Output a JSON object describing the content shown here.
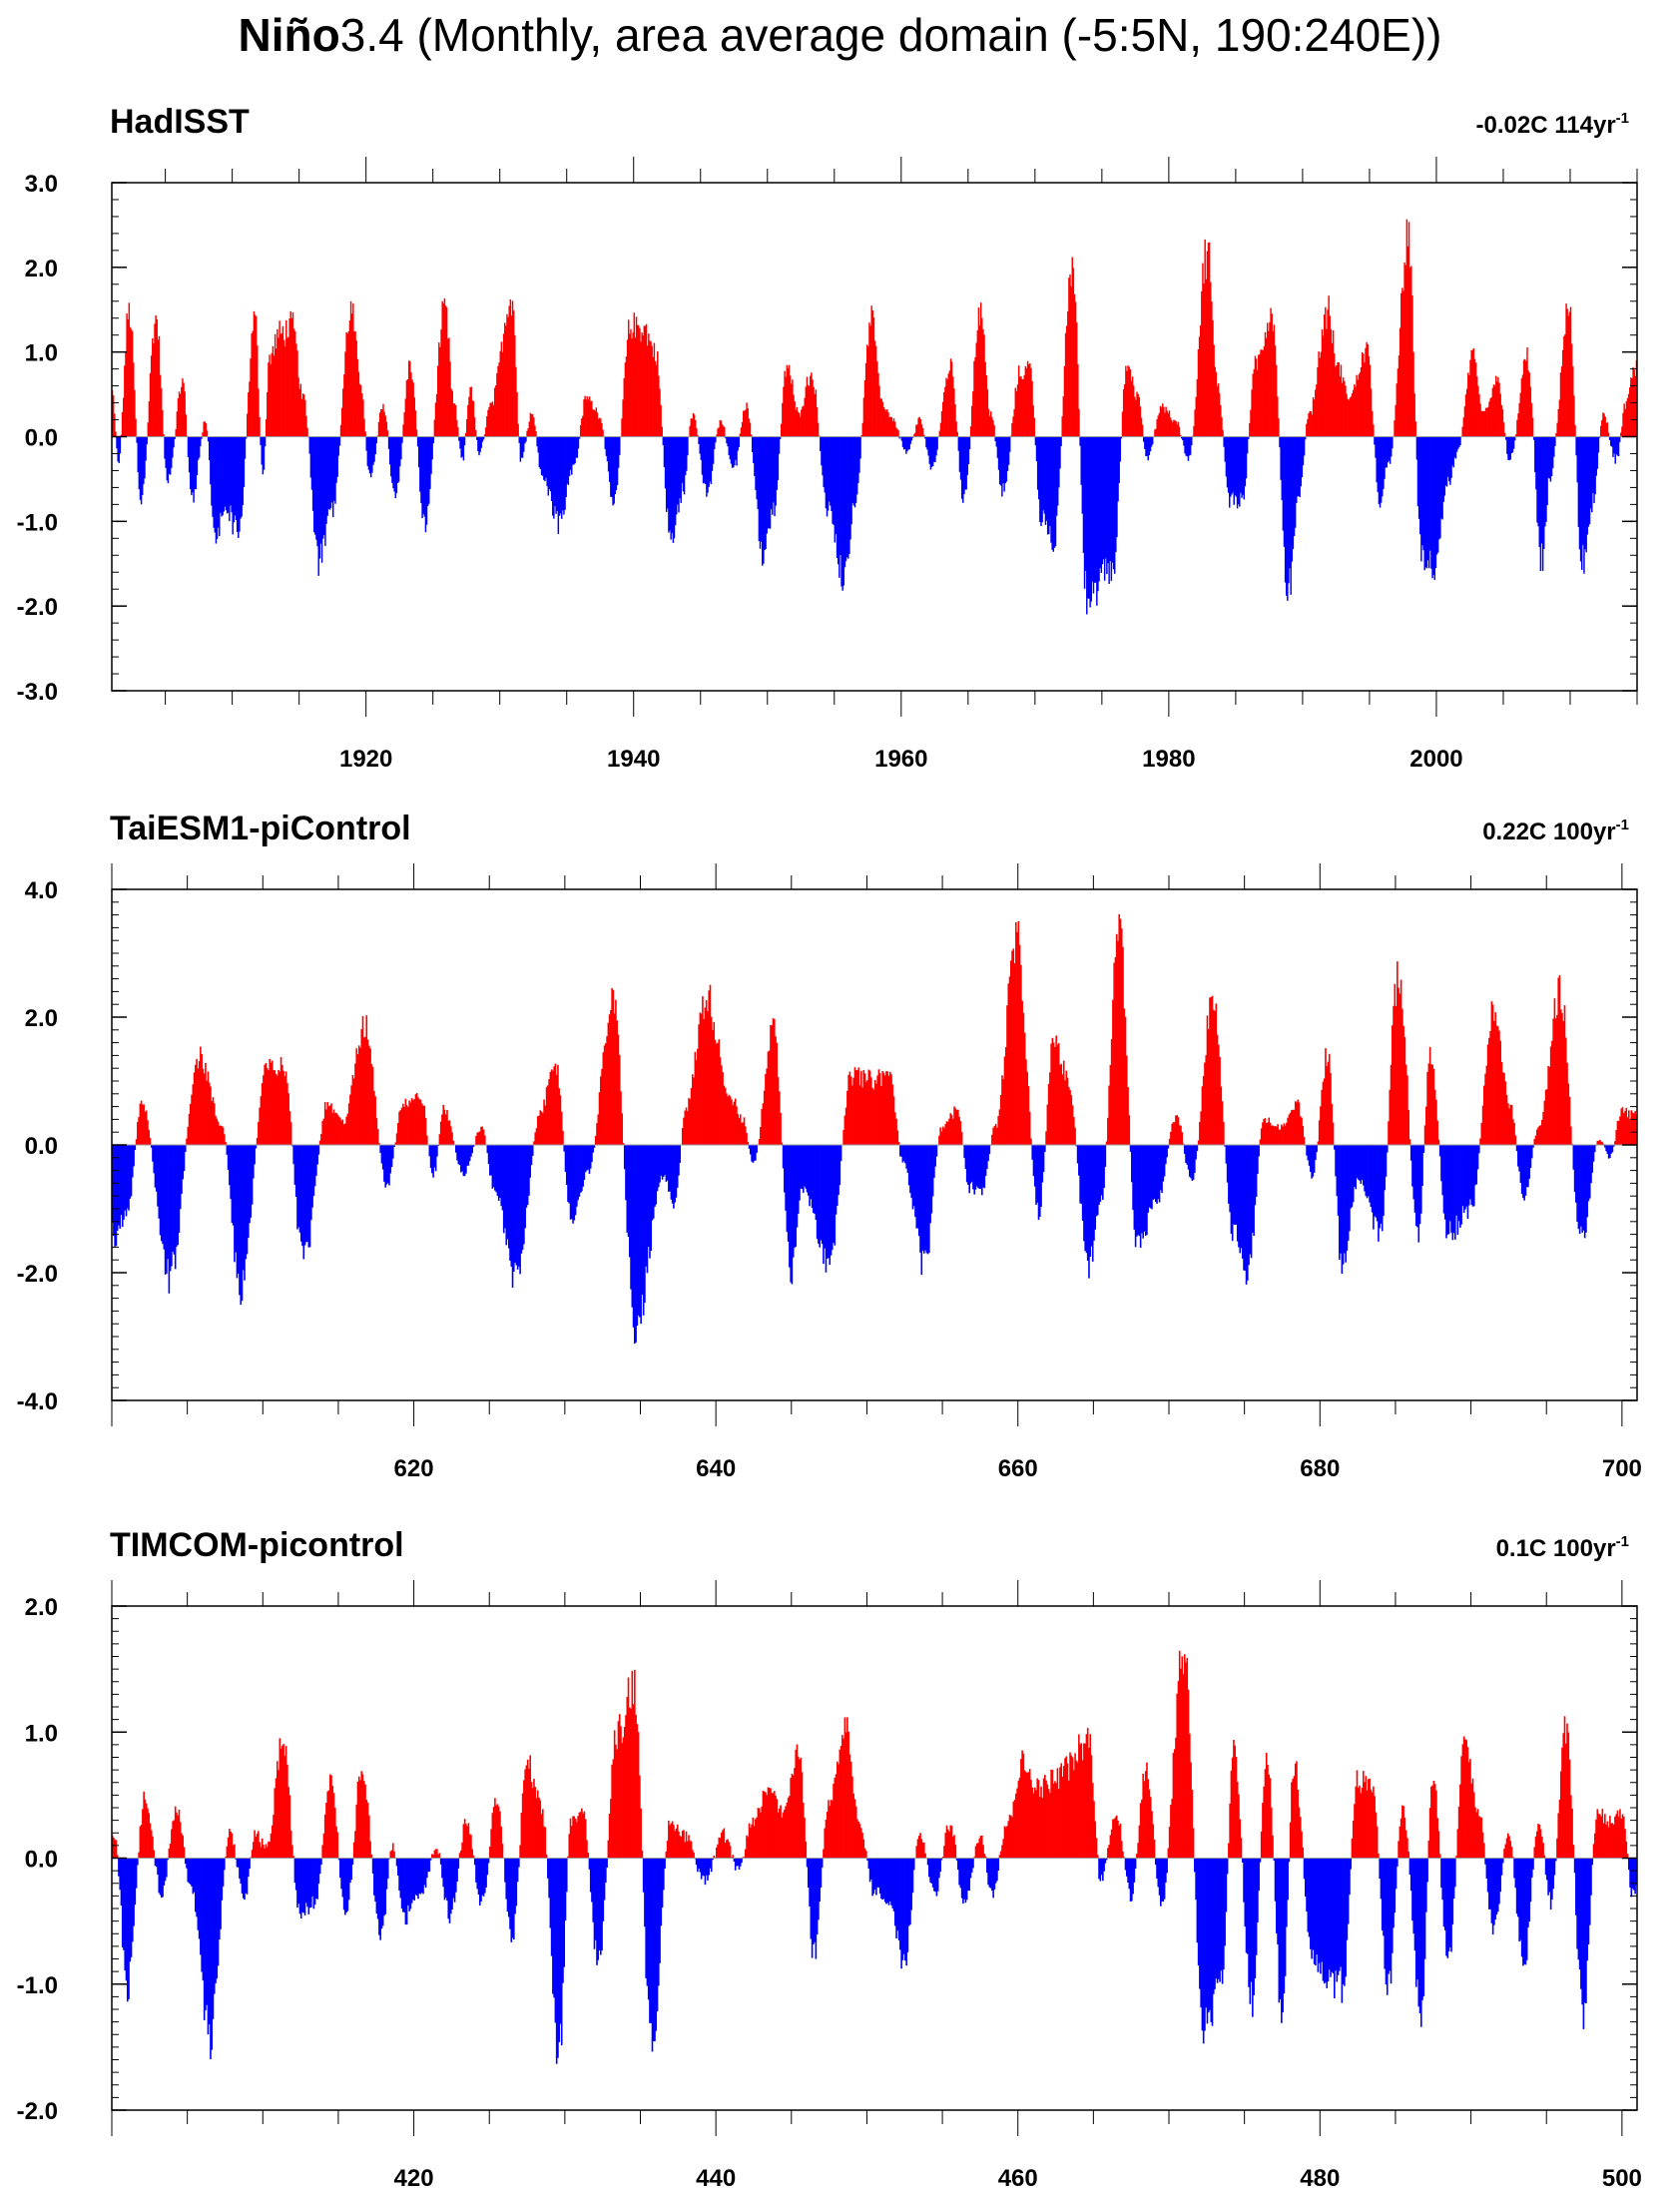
{
  "title": {
    "bold_part": "Niño",
    "rest": "3.4 (Monthly, area average domain (-5:5N, 190:240E))"
  },
  "colors": {
    "positive": "#ff0000",
    "negative": "#0000ff",
    "axis": "#000000"
  },
  "chart_data": [
    {
      "type": "area",
      "title": "HadISST",
      "trend_label": "-0.02C 114yr",
      "trend_superscript": "-1",
      "xlim": [
        1901,
        2015
      ],
      "ylim": [
        -3.0,
        3.0
      ],
      "yticks": [
        "-3.0",
        "-2.0",
        "-1.0",
        "0.0",
        "1.0",
        "2.0",
        "3.0"
      ],
      "xticks": [
        "1920",
        "1940",
        "1960",
        "1980",
        "2000"
      ],
      "xtick_values": [
        1920,
        1940,
        1960,
        1980,
        2000
      ],
      "keypoints": [
        [
          1901,
          0.6
        ],
        [
          1901.5,
          -0.3
        ],
        [
          1902.3,
          1.6
        ],
        [
          1903.2,
          -0.8
        ],
        [
          1904.3,
          1.5
        ],
        [
          1905.2,
          -0.6
        ],
        [
          1906.3,
          0.7
        ],
        [
          1907,
          -0.8
        ],
        [
          1908,
          0.2
        ],
        [
          1908.7,
          -1.3
        ],
        [
          1909.5,
          -0.9
        ],
        [
          1910.5,
          -1.2
        ],
        [
          1911.7,
          1.5
        ],
        [
          1912.3,
          -0.5
        ],
        [
          1912.8,
          1.0
        ],
        [
          1913.5,
          1.3
        ],
        [
          1914.5,
          1.4
        ],
        [
          1915.3,
          0.5
        ],
        [
          1916.5,
          -1.6
        ],
        [
          1917.5,
          -0.9
        ],
        [
          1918.9,
          1.6
        ],
        [
          1919.6,
          0.7
        ],
        [
          1920.3,
          -0.5
        ],
        [
          1921.3,
          0.4
        ],
        [
          1922.2,
          -0.8
        ],
        [
          1923.3,
          0.9
        ],
        [
          1924.4,
          -1.1
        ],
        [
          1925.9,
          1.6
        ],
        [
          1926.6,
          0.4
        ],
        [
          1927.2,
          -0.3
        ],
        [
          1927.8,
          0.6
        ],
        [
          1928.5,
          -0.2
        ],
        [
          1929.3,
          0.4
        ],
        [
          1930.9,
          1.8
        ],
        [
          1931.6,
          -0.3
        ],
        [
          1932.4,
          0.3
        ],
        [
          1933.2,
          -0.5
        ],
        [
          1934.4,
          -1.1
        ],
        [
          1935.5,
          -0.4
        ],
        [
          1936.5,
          0.5
        ],
        [
          1937.4,
          0.3
        ],
        [
          1938.5,
          -0.8
        ],
        [
          1939.8,
          1.4
        ],
        [
          1940.7,
          1.4
        ],
        [
          1941.6,
          1.1
        ],
        [
          1942.8,
          -1.3
        ],
        [
          1943.7,
          -0.7
        ],
        [
          1944.4,
          0.3
        ],
        [
          1945.5,
          -0.7
        ],
        [
          1946.5,
          0.2
        ],
        [
          1947.5,
          -0.4
        ],
        [
          1948.4,
          0.4
        ],
        [
          1949.7,
          -1.5
        ],
        [
          1950.4,
          -1.0
        ],
        [
          1951.5,
          0.9
        ],
        [
          1952.3,
          0.3
        ],
        [
          1953.3,
          0.8
        ],
        [
          1954.5,
          -0.9
        ],
        [
          1955.8,
          -1.8
        ],
        [
          1956.5,
          -0.9
        ],
        [
          1957.8,
          1.5
        ],
        [
          1958.6,
          0.4
        ],
        [
          1959.4,
          0.2
        ],
        [
          1960.4,
          -0.2
        ],
        [
          1961.4,
          0.2
        ],
        [
          1962.3,
          -0.4
        ],
        [
          1963.7,
          0.9
        ],
        [
          1964.7,
          -0.8
        ],
        [
          1965.9,
          1.6
        ],
        [
          1966.7,
          0.3
        ],
        [
          1967.6,
          -0.7
        ],
        [
          1968.9,
          0.8
        ],
        [
          1969.6,
          0.9
        ],
        [
          1970.5,
          -1.1
        ],
        [
          1971.4,
          -1.3
        ],
        [
          1972.8,
          2.2
        ],
        [
          1973.9,
          -2.1
        ],
        [
          1975.8,
          -1.7
        ],
        [
          1976.9,
          0.9
        ],
        [
          1977.7,
          0.5
        ],
        [
          1978.4,
          -0.3
        ],
        [
          1979.5,
          0.4
        ],
        [
          1980.5,
          0.2
        ],
        [
          1981.5,
          -0.3
        ],
        [
          1982.9,
          2.4
        ],
        [
          1983.6,
          0.7
        ],
        [
          1984.6,
          -0.8
        ],
        [
          1985.5,
          -0.8
        ],
        [
          1986.5,
          0.9
        ],
        [
          1987.7,
          1.6
        ],
        [
          1988.9,
          -2.0
        ],
        [
          1989.7,
          -0.8
        ],
        [
          1990.5,
          0.3
        ],
        [
          1991.9,
          1.6
        ],
        [
          1992.6,
          0.9
        ],
        [
          1993.5,
          0.5
        ],
        [
          1994.8,
          1.1
        ],
        [
          1995.8,
          -0.8
        ],
        [
          1996.5,
          -0.3
        ],
        [
          1997.9,
          2.5
        ],
        [
          1998.9,
          -1.5
        ],
        [
          1999.9,
          -1.7
        ],
        [
          2000.9,
          -0.6
        ],
        [
          2001.6,
          -0.2
        ],
        [
          2002.7,
          1.0
        ],
        [
          2003.5,
          0.3
        ],
        [
          2004.6,
          0.7
        ],
        [
          2005.5,
          -0.3
        ],
        [
          2006.8,
          1.0
        ],
        [
          2007.9,
          -1.6
        ],
        [
          2008.5,
          -0.5
        ],
        [
          2009.9,
          1.6
        ],
        [
          2010.9,
          -1.6
        ],
        [
          2011.7,
          -0.8
        ],
        [
          2012.5,
          0.3
        ],
        [
          2013.4,
          -0.3
        ],
        [
          2014.3,
          0.5
        ],
        [
          2014.9,
          0.9
        ]
      ]
    },
    {
      "type": "area",
      "title": "TaiESM1-piControl",
      "trend_label": "0.22C 100yr",
      "trend_superscript": "-1",
      "xlim": [
        600,
        701
      ],
      "ylim": [
        -4.0,
        4.0
      ],
      "yticks": [
        "-4.0",
        "-2.0",
        "0.0",
        "2.0",
        "4.0"
      ],
      "xticks": [
        "620",
        "640",
        "660",
        "680",
        "700"
      ],
      "xtick_values": [
        620,
        640,
        660,
        680,
        700
      ],
      "keypoints": [
        [
          600.2,
          -1.5
        ],
        [
          601,
          -1.2
        ],
        [
          602,
          0.7
        ],
        [
          603.8,
          -2.2
        ],
        [
          605.8,
          1.5
        ],
        [
          607.3,
          0.3
        ],
        [
          608.5,
          -2.4
        ],
        [
          610.3,
          1.3
        ],
        [
          611.4,
          1.3
        ],
        [
          612.7,
          -2.0
        ],
        [
          614.3,
          0.7
        ],
        [
          615.3,
          0.4
        ],
        [
          616.8,
          2.0
        ],
        [
          618.2,
          -0.7
        ],
        [
          619.3,
          0.7
        ],
        [
          620.5,
          0.8
        ],
        [
          621.3,
          -0.5
        ],
        [
          622,
          0.6
        ],
        [
          623.3,
          -0.5
        ],
        [
          624.5,
          0.3
        ],
        [
          625.3,
          -0.7
        ],
        [
          626.7,
          -2.2
        ],
        [
          628.5,
          0.6
        ],
        [
          629.3,
          1.5
        ],
        [
          630.5,
          -1.3
        ],
        [
          631.5,
          -0.5
        ],
        [
          633.2,
          2.4
        ],
        [
          634.7,
          -3.1
        ],
        [
          636.5,
          -0.5
        ],
        [
          637.3,
          -1.0
        ],
        [
          638,
          0.6
        ],
        [
          639.4,
          2.5
        ],
        [
          641,
          0.8
        ],
        [
          641.8,
          0.4
        ],
        [
          642.5,
          -0.3
        ],
        [
          643.8,
          2.0
        ],
        [
          645,
          -2.2
        ],
        [
          645.8,
          -0.7
        ],
        [
          647.5,
          -2.1
        ],
        [
          649,
          1.2
        ],
        [
          650.4,
          1.1
        ],
        [
          651.5,
          1.2
        ],
        [
          652.4,
          -0.3
        ],
        [
          653.8,
          -2.0
        ],
        [
          655,
          0.3
        ],
        [
          656,
          0.6
        ],
        [
          656.8,
          -0.7
        ],
        [
          657.6,
          -0.8
        ],
        [
          658.5,
          0.3
        ],
        [
          659.9,
          3.4
        ],
        [
          661.4,
          -1.1
        ],
        [
          662.4,
          1.8
        ],
        [
          663.3,
          1.1
        ],
        [
          664.7,
          -2.0
        ],
        [
          665.5,
          -1.0
        ],
        [
          666.7,
          3.7
        ],
        [
          667.9,
          -1.7
        ],
        [
          669.2,
          -1.0
        ],
        [
          670.5,
          0.5
        ],
        [
          671.5,
          -0.6
        ],
        [
          672.9,
          2.4
        ],
        [
          674.3,
          -1.5
        ],
        [
          675.2,
          -2.2
        ],
        [
          676.3,
          0.4
        ],
        [
          677.5,
          0.3
        ],
        [
          678.5,
          0.7
        ],
        [
          679.5,
          -0.5
        ],
        [
          680.5,
          1.5
        ],
        [
          681.5,
          -2.1
        ],
        [
          682.5,
          -0.6
        ],
        [
          684,
          -1.5
        ],
        [
          685.2,
          2.9
        ],
        [
          686.5,
          -1.5
        ],
        [
          687.3,
          1.5
        ],
        [
          688.5,
          -1.5
        ],
        [
          690,
          -1.1
        ],
        [
          691.5,
          2.2
        ],
        [
          692.6,
          0.7
        ],
        [
          693.5,
          -0.9
        ],
        [
          694.5,
          0.3
        ],
        [
          695.9,
          2.6
        ],
        [
          697.3,
          -1.6
        ],
        [
          698.5,
          0.1
        ],
        [
          699.2,
          -0.2
        ],
        [
          700,
          0.6
        ],
        [
          700.7,
          0.5
        ]
      ]
    },
    {
      "type": "area",
      "title": "TIMCOM-picontrol",
      "trend_label": "0.1C 100yr",
      "trend_superscript": "-1",
      "xlim": [
        400,
        501
      ],
      "ylim": [
        -2.0,
        2.0
      ],
      "yticks": [
        "-2.0",
        "-1.0",
        "0.0",
        "1.0",
        "2.0"
      ],
      "xticks": [
        "420",
        "440",
        "460",
        "480",
        "500"
      ],
      "xtick_values": [
        420,
        440,
        460,
        480,
        500
      ],
      "keypoints": [
        [
          400.2,
          0.2
        ],
        [
          401,
          -1.1
        ],
        [
          402.2,
          0.5
        ],
        [
          403.3,
          -0.3
        ],
        [
          404.3,
          0.4
        ],
        [
          405.3,
          -0.3
        ],
        [
          406.5,
          -1.5
        ],
        [
          407.8,
          0.2
        ],
        [
          408.8,
          -0.3
        ],
        [
          409.5,
          0.2
        ],
        [
          410.3,
          0.1
        ],
        [
          411.3,
          1.0
        ],
        [
          412.5,
          -0.5
        ],
        [
          413.5,
          -0.4
        ],
        [
          414.5,
          0.7
        ],
        [
          415.5,
          -0.5
        ],
        [
          416.6,
          0.8
        ],
        [
          417.8,
          -0.7
        ],
        [
          418.6,
          0.1
        ],
        [
          419.4,
          -0.5
        ],
        [
          420.5,
          -0.3
        ],
        [
          421.5,
          0.1
        ],
        [
          422.4,
          -0.5
        ],
        [
          423.5,
          0.3
        ],
        [
          424.5,
          -0.4
        ],
        [
          425.5,
          0.5
        ],
        [
          426.5,
          -0.7
        ],
        [
          427.5,
          0.8
        ],
        [
          428.5,
          0.4
        ],
        [
          429.6,
          -1.7
        ],
        [
          430.4,
          0.3
        ],
        [
          431.2,
          0.4
        ],
        [
          432.2,
          -0.9
        ],
        [
          433.5,
          1.1
        ],
        [
          434.6,
          1.5
        ],
        [
          435.7,
          -1.6
        ],
        [
          437,
          0.3
        ],
        [
          438,
          0.2
        ],
        [
          439.3,
          -0.2
        ],
        [
          440.5,
          0.2
        ],
        [
          441.5,
          -0.1
        ],
        [
          442.4,
          0.3
        ],
        [
          443.5,
          0.6
        ],
        [
          444.4,
          0.4
        ],
        [
          445.5,
          0.9
        ],
        [
          446.5,
          -0.8
        ],
        [
          447.5,
          0.5
        ],
        [
          448.6,
          1.1
        ],
        [
          449.5,
          0.3
        ],
        [
          450.5,
          -0.3
        ],
        [
          451.5,
          -0.4
        ],
        [
          452.5,
          -0.9
        ],
        [
          453.5,
          0.2
        ],
        [
          454.5,
          -0.3
        ],
        [
          455.5,
          0.3
        ],
        [
          456.5,
          -0.4
        ],
        [
          457.5,
          0.2
        ],
        [
          458.3,
          -0.3
        ],
        [
          459.3,
          0.3
        ],
        [
          460.3,
          0.8
        ],
        [
          461.5,
          0.6
        ],
        [
          462.5,
          0.7
        ],
        [
          463.3,
          0.8
        ],
        [
          464.7,
          1.0
        ],
        [
          465.5,
          -0.2
        ],
        [
          466.5,
          0.4
        ],
        [
          467.5,
          -0.3
        ],
        [
          468.5,
          0.8
        ],
        [
          469.5,
          -0.4
        ],
        [
          471,
          1.8
        ],
        [
          472.3,
          -1.5
        ],
        [
          473.5,
          -1.0
        ],
        [
          474.3,
          0.9
        ],
        [
          475.5,
          -1.2
        ],
        [
          476.5,
          0.9
        ],
        [
          477.5,
          -1.3
        ],
        [
          478.3,
          0.8
        ],
        [
          479.5,
          -0.8
        ],
        [
          480.5,
          -1.0
        ],
        [
          481.5,
          -1.1
        ],
        [
          482.5,
          0.7
        ],
        [
          483.5,
          0.6
        ],
        [
          484.5,
          -1.1
        ],
        [
          485.5,
          0.4
        ],
        [
          486.7,
          -1.3
        ],
        [
          487.5,
          0.7
        ],
        [
          488.5,
          -0.9
        ],
        [
          489.6,
          1.0
        ],
        [
          490.5,
          0.4
        ],
        [
          491.5,
          -0.6
        ],
        [
          492.5,
          0.2
        ],
        [
          493.5,
          -0.9
        ],
        [
          494.5,
          0.3
        ],
        [
          495.3,
          -0.4
        ],
        [
          496.3,
          1.1
        ],
        [
          497.4,
          -1.3
        ],
        [
          498.4,
          0.4
        ],
        [
          499.3,
          0.3
        ],
        [
          500,
          0.4
        ],
        [
          500.7,
          -0.3
        ]
      ]
    }
  ]
}
